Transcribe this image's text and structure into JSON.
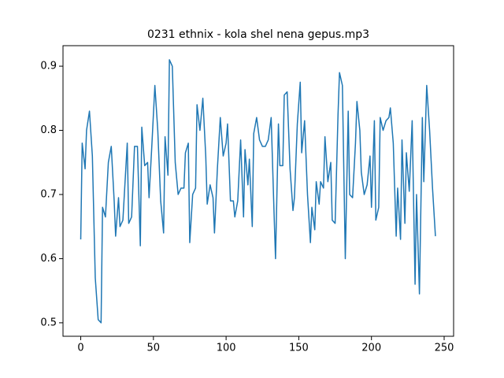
{
  "chart_data": {
    "type": "line",
    "title": "0231 ethnix - kola shel nena gepus.mp3",
    "color": "#1f77b4",
    "x": [
      0,
      1,
      3,
      4,
      6,
      8,
      10,
      12,
      14,
      15,
      17,
      19,
      21,
      23,
      24,
      26,
      27,
      29,
      30,
      32,
      33,
      35,
      37,
      39,
      41,
      42,
      44,
      46,
      47,
      49,
      51,
      53,
      55,
      57,
      58,
      60,
      61,
      63,
      65,
      67,
      69,
      71,
      72,
      74,
      75,
      77,
      79,
      80,
      82,
      84,
      86,
      87,
      89,
      91,
      92,
      94,
      96,
      98,
      100,
      101,
      103,
      105,
      106,
      108,
      110,
      112,
      113,
      115,
      116,
      118,
      119,
      121,
      123,
      125,
      127,
      129,
      131,
      133,
      134,
      136,
      137,
      139,
      140,
      142,
      144,
      146,
      147,
      149,
      151,
      152,
      154,
      156,
      158,
      159,
      161,
      162,
      164,
      165,
      167,
      168,
      170,
      172,
      173,
      175,
      177,
      178,
      180,
      182,
      184,
      185,
      187,
      189,
      190,
      192,
      193,
      195,
      197,
      199,
      200,
      202,
      203,
      205,
      206,
      208,
      210,
      212,
      213,
      215,
      217,
      218,
      220,
      221,
      223,
      224,
      226,
      228,
      230,
      231,
      233,
      235,
      236,
      238,
      240,
      242,
      244
    ],
    "values": [
      0.63,
      0.78,
      0.74,
      0.8,
      0.83,
      0.76,
      0.57,
      0.505,
      0.5,
      0.68,
      0.665,
      0.75,
      0.775,
      0.69,
      0.635,
      0.695,
      0.65,
      0.66,
      0.7,
      0.78,
      0.655,
      0.665,
      0.775,
      0.775,
      0.62,
      0.805,
      0.745,
      0.75,
      0.695,
      0.78,
      0.87,
      0.8,
      0.69,
      0.64,
      0.79,
      0.73,
      0.91,
      0.9,
      0.75,
      0.7,
      0.71,
      0.71,
      0.765,
      0.78,
      0.625,
      0.7,
      0.71,
      0.84,
      0.8,
      0.85,
      0.76,
      0.685,
      0.715,
      0.695,
      0.64,
      0.74,
      0.82,
      0.76,
      0.78,
      0.81,
      0.69,
      0.69,
      0.665,
      0.69,
      0.785,
      0.665,
      0.77,
      0.715,
      0.755,
      0.65,
      0.795,
      0.82,
      0.785,
      0.775,
      0.775,
      0.785,
      0.82,
      0.67,
      0.6,
      0.81,
      0.745,
      0.745,
      0.855,
      0.86,
      0.74,
      0.675,
      0.695,
      0.81,
      0.875,
      0.765,
      0.815,
      0.7,
      0.625,
      0.68,
      0.645,
      0.72,
      0.685,
      0.72,
      0.71,
      0.79,
      0.72,
      0.75,
      0.66,
      0.655,
      0.825,
      0.89,
      0.87,
      0.6,
      0.83,
      0.7,
      0.695,
      0.78,
      0.845,
      0.8,
      0.735,
      0.7,
      0.715,
      0.76,
      0.68,
      0.815,
      0.66,
      0.68,
      0.82,
      0.8,
      0.815,
      0.82,
      0.835,
      0.78,
      0.635,
      0.71,
      0.63,
      0.785,
      0.655,
      0.765,
      0.705,
      0.815,
      0.56,
      0.7,
      0.545,
      0.82,
      0.72,
      0.87,
      0.8,
      0.71,
      0.635
    ],
    "xlim": [
      -12.2,
      256.5
    ],
    "ylim": [
      0.479,
      0.932
    ],
    "xticks": [
      0,
      50,
      100,
      150,
      200,
      250
    ],
    "yticks": [
      0.5,
      0.6,
      0.7,
      0.8,
      0.9
    ]
  }
}
